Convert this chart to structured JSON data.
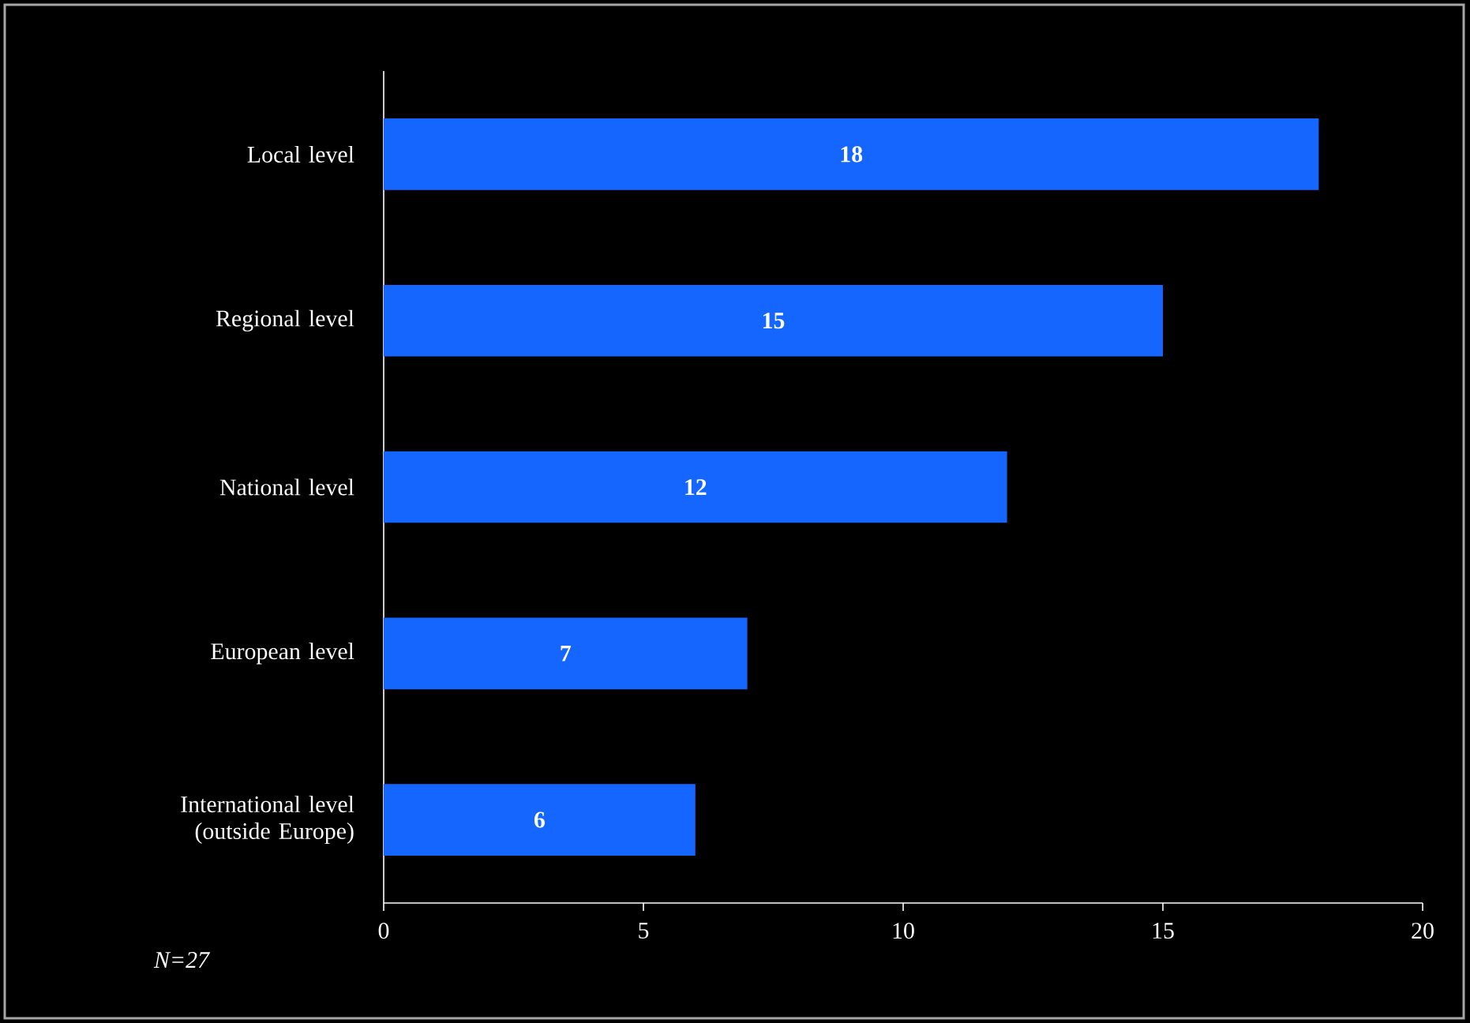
{
  "chart_data": {
    "type": "bar",
    "orientation": "horizontal",
    "categories": [
      "Local level",
      "Regional level",
      "National level",
      "European level",
      "International level (outside Europe)"
    ],
    "values": [
      18,
      15,
      12,
      7,
      6
    ],
    "color": "#1466ff",
    "xlim": [
      0,
      20
    ],
    "xticks": [
      0,
      5,
      10,
      15,
      20
    ],
    "data_labels": true,
    "annotations": [
      "N=27"
    ]
  }
}
